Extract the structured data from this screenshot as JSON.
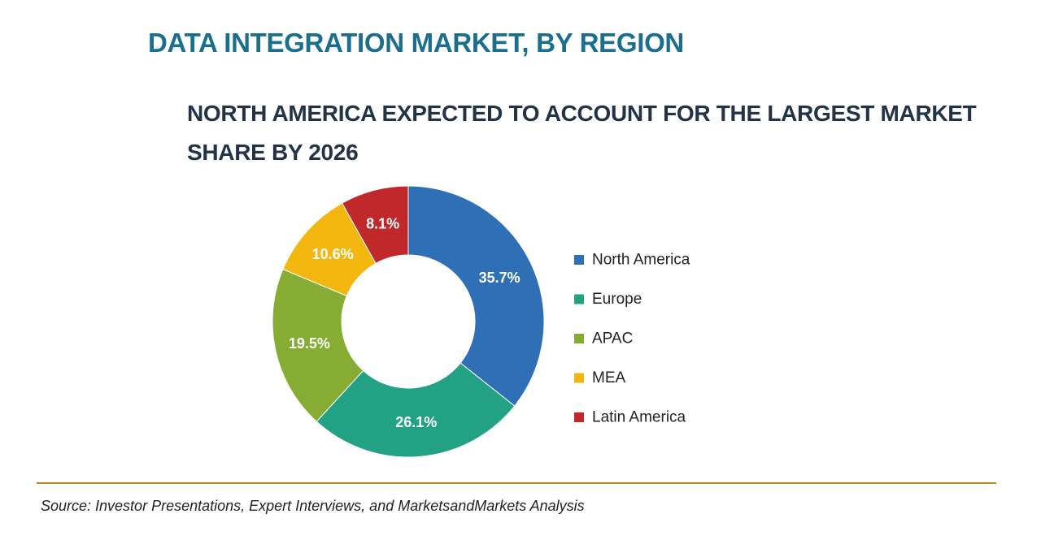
{
  "header": {
    "title": "DATA INTEGRATION MARKET, BY REGION",
    "subtitle": "NORTH AMERICA EXPECTED TO ACCOUNT FOR THE LARGEST MARKET SHARE BY 2026"
  },
  "chart_data": {
    "type": "pie",
    "donut": true,
    "categories": [
      "North America",
      "Europe",
      "APAC",
      "MEA",
      "Latin America"
    ],
    "values": [
      35.7,
      26.1,
      19.5,
      10.6,
      8.1
    ],
    "data_labels": [
      "35.7%",
      "26.1%",
      "19.5%",
      "10.6%",
      "8.1%"
    ],
    "colors": [
      "#2e6fb5",
      "#23a184",
      "#86ac34",
      "#f3b70f",
      "#c0282a"
    ],
    "legend_position": "right",
    "start_angle": "12 o'clock, clockwise"
  },
  "footer": {
    "source": "Source: Investor Presentations, Expert Interviews, and MarketsandMarkets Analysis"
  }
}
